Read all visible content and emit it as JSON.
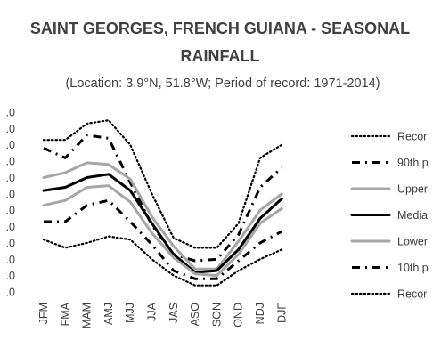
{
  "chart_data": {
    "type": "line",
    "title_line1": "SAINT GEORGES, FRENCH GUIANA - SEASONAL",
    "title_line2": "RAINFALL",
    "subtitle": "(Location: 3.9°N, 51.8°W; Period of record: 1971-2014)",
    "xlabel": "",
    "ylabel": "",
    "grid": false,
    "legend_position": "right",
    "categories": [
      "JFM",
      "FMA",
      "MAM",
      "AMJ",
      "MJJ",
      "JJA",
      "JAS",
      "ASO",
      "SON",
      "OND",
      "NDJ",
      "DJF"
    ],
    "y_tick_labels": [
      ".0",
      ".0",
      ".0",
      ".0",
      ".0",
      ".0",
      ".0",
      ".0",
      ".0",
      ".0",
      ".0",
      ".0"
    ],
    "ylim": [
      0,
      11
    ],
    "series": [
      {
        "name": "Recor",
        "style": "dotted",
        "color": "#000000",
        "values": [
          9.3,
          9.3,
          10.3,
          10.5,
          9.0,
          6.0,
          3.3,
          2.7,
          2.7,
          4.2,
          8.2,
          9.0
        ]
      },
      {
        "name": "90th p",
        "style": "dashdot",
        "color": "#000000",
        "values": [
          8.8,
          8.2,
          9.6,
          9.4,
          6.7,
          4.1,
          2.3,
          1.9,
          2.0,
          3.5,
          6.4,
          7.6
        ]
      },
      {
        "name": "Upper",
        "style": "solid",
        "color": "#a6a6a6",
        "values": [
          7.0,
          7.3,
          7.9,
          7.8,
          6.9,
          4.6,
          2.8,
          1.4,
          1.4,
          3.1,
          5.0,
          6.0
        ]
      },
      {
        "name": "Media",
        "style": "solid",
        "color": "#000000",
        "values": [
          6.2,
          6.4,
          7.0,
          7.2,
          6.2,
          4.2,
          2.3,
          1.2,
          1.3,
          2.6,
          4.5,
          5.7
        ]
      },
      {
        "name": "Lower",
        "style": "solid",
        "color": "#a6a6a6",
        "values": [
          5.3,
          5.6,
          6.4,
          6.5,
          5.5,
          3.6,
          2.1,
          1.1,
          1.0,
          2.3,
          4.2,
          5.1
        ]
      },
      {
        "name": "10th p",
        "style": "dashdot",
        "color": "#000000",
        "values": [
          4.3,
          4.3,
          5.3,
          5.6,
          4.3,
          2.9,
          1.3,
          0.8,
          0.8,
          1.9,
          3.0,
          3.7
        ]
      },
      {
        "name": "Recor",
        "style": "dotted",
        "color": "#000000",
        "values": [
          3.2,
          2.7,
          3.0,
          3.4,
          3.2,
          2.0,
          1.0,
          0.4,
          0.4,
          1.3,
          2.0,
          2.6
        ]
      }
    ]
  }
}
